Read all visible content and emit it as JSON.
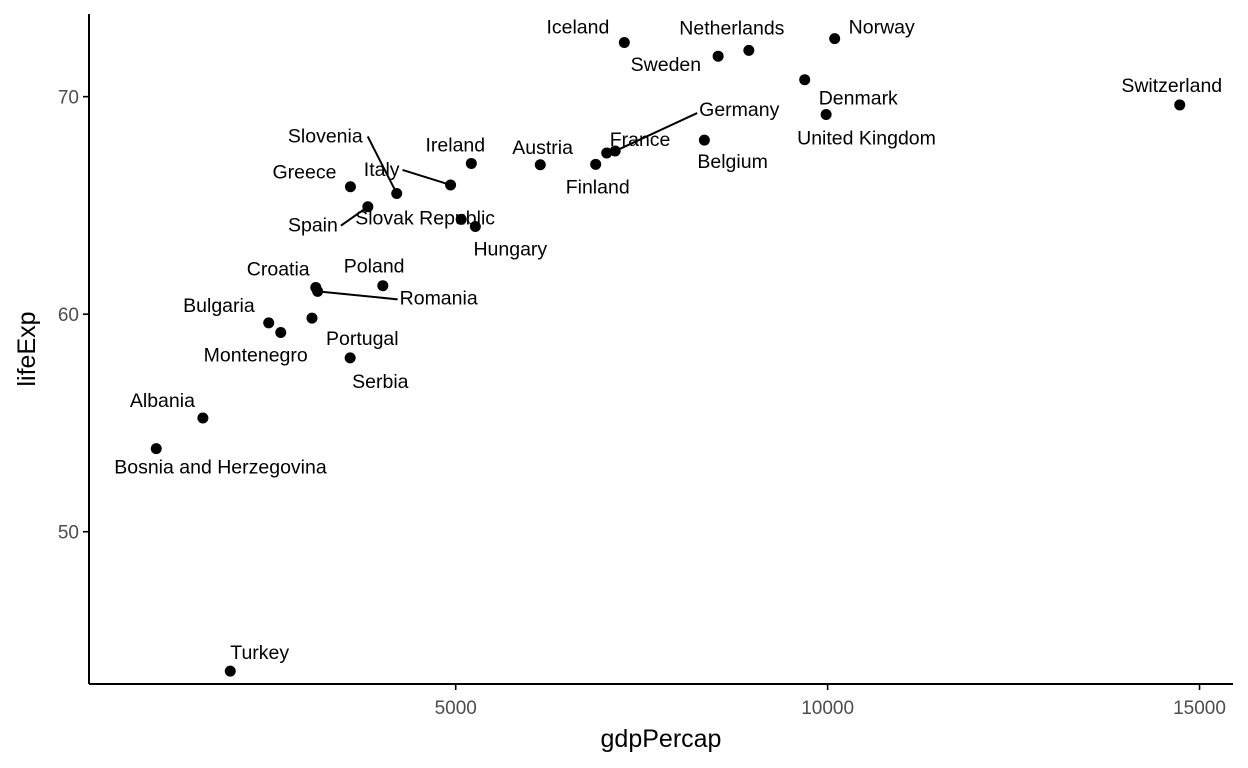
{
  "chart_data": {
    "type": "scatter",
    "title": "",
    "xlabel": "gdpPercap",
    "ylabel": "lifeExp",
    "xlim": [
      70,
      15450
    ],
    "ylim": [
      43.0,
      73.8
    ],
    "xticks": [
      5000,
      10000,
      15000
    ],
    "yticks": [
      50,
      60,
      70
    ],
    "grid": false,
    "points": [
      {
        "name": "Iceland",
        "x": 7267,
        "y": 72.49
      },
      {
        "name": "Netherlands",
        "x": 8941,
        "y": 72.13
      },
      {
        "name": "Norway",
        "x": 10095,
        "y": 72.67
      },
      {
        "name": "Sweden",
        "x": 8528,
        "y": 71.86
      },
      {
        "name": "Denmark",
        "x": 9692,
        "y": 70.78
      },
      {
        "name": "Switzerland",
        "x": 14734,
        "y": 69.62
      },
      {
        "name": "United Kingdom",
        "x": 9980,
        "y": 69.18
      },
      {
        "name": "Germany",
        "x": 7144,
        "y": 67.5
      },
      {
        "name": "France",
        "x": 7030,
        "y": 67.41
      },
      {
        "name": "Belgium",
        "x": 8343,
        "y": 68.0
      },
      {
        "name": "Finland",
        "x": 6882,
        "y": 66.89
      },
      {
        "name": "Austria",
        "x": 6137,
        "y": 66.87
      },
      {
        "name": "Ireland",
        "x": 5210,
        "y": 66.93
      },
      {
        "name": "Italy",
        "x": 4931,
        "y": 65.94
      },
      {
        "name": "Slovenia",
        "x": 4207,
        "y": 65.55
      },
      {
        "name": "Greece",
        "x": 3585,
        "y": 65.86
      },
      {
        "name": "Spain",
        "x": 3819,
        "y": 64.94
      },
      {
        "name": "Slovak Republic",
        "x": 5074,
        "y": 64.36
      },
      {
        "name": "Hungary",
        "x": 5264,
        "y": 64.03
      },
      {
        "name": "Poland",
        "x": 4020,
        "y": 61.31
      },
      {
        "name": "Croatia",
        "x": 3119,
        "y": 61.23
      },
      {
        "name": "Romania",
        "x": 3144,
        "y": 61.05
      },
      {
        "name": "Bulgaria",
        "x": 2486,
        "y": 59.6
      },
      {
        "name": "Montenegro",
        "x": 2648,
        "y": 59.16
      },
      {
        "name": "Portugal",
        "x": 3068,
        "y": 59.82
      },
      {
        "name": "Serbia",
        "x": 3581,
        "y": 57.99
      },
      {
        "name": "Albania",
        "x": 1601,
        "y": 55.23
      },
      {
        "name": "Bosnia and Herzegovina",
        "x": 974,
        "y": 53.82
      },
      {
        "name": "Turkey",
        "x": 1969,
        "y": 43.59
      }
    ],
    "annotations": [
      {
        "text": "Iceland",
        "anchor": "Iceland"
      },
      {
        "text": "Netherlands",
        "anchor": "Netherlands"
      },
      {
        "text": "Norway",
        "anchor": "Norway"
      },
      {
        "text": "Sweden",
        "anchor": "Sweden"
      },
      {
        "text": "Denmark",
        "anchor": "Denmark"
      },
      {
        "text": "Switzerland",
        "anchor": "Switzerland"
      },
      {
        "text": "United Kingdom",
        "anchor": "United Kingdom"
      },
      {
        "text": "Germany",
        "anchor": "Germany"
      },
      {
        "text": "France",
        "anchor": "France"
      },
      {
        "text": "Belgium",
        "anchor": "Belgium"
      },
      {
        "text": "Finland",
        "anchor": "Finland"
      },
      {
        "text": "Austria",
        "anchor": "Austria"
      },
      {
        "text": "Ireland",
        "anchor": "Ireland"
      },
      {
        "text": "Italy",
        "anchor": "Italy"
      },
      {
        "text": "Slovenia",
        "anchor": "Slovenia"
      },
      {
        "text": "Greece",
        "anchor": "Greece"
      },
      {
        "text": "Spain",
        "anchor": "Spain"
      },
      {
        "text": "Slovak Republic",
        "anchor": "Slovak Republic"
      },
      {
        "text": "Hungary",
        "anchor": "Hungary"
      },
      {
        "text": "Poland",
        "anchor": "Poland"
      },
      {
        "text": "Croatia",
        "anchor": "Croatia"
      },
      {
        "text": "Romania",
        "anchor": "Romania"
      },
      {
        "text": "Bulgaria",
        "anchor": "Bulgaria"
      },
      {
        "text": "Montenegro",
        "anchor": "Montenegro"
      },
      {
        "text": "Portugal",
        "anchor": "Portugal"
      },
      {
        "text": "Serbia",
        "anchor": "Serbia"
      },
      {
        "text": "Albania",
        "anchor": "Albania"
      },
      {
        "text": "Bosnia and Herzegovina",
        "anchor": "Bosnia and Herzegovina"
      },
      {
        "text": "Turkey",
        "anchor": "Turkey"
      }
    ],
    "colors": {
      "point": "#000000",
      "axis": "#000000",
      "tick_label": "#4d4d4d",
      "background": "#ffffff"
    }
  }
}
